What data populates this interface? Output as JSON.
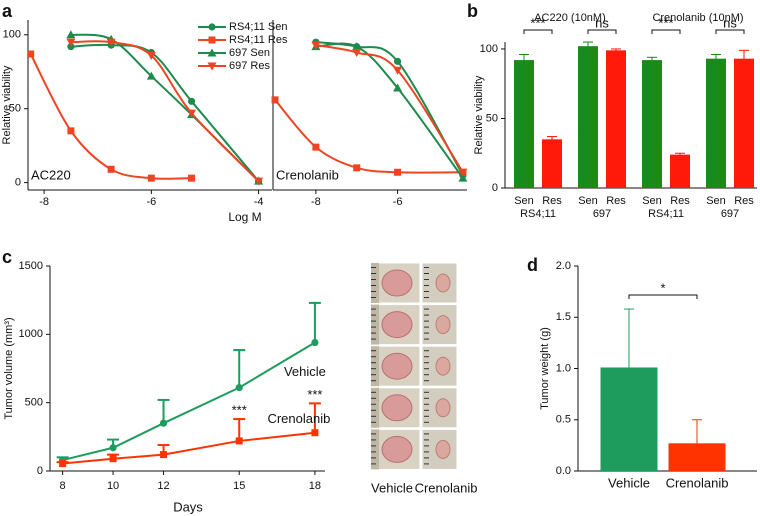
{
  "chart_data": [
    {
      "type": "scatter",
      "panel_label": "a",
      "y_label": "Relative viability",
      "x_label": "Log M",
      "ylim": [
        -5,
        110
      ],
      "yticks": [
        0,
        50,
        100
      ],
      "series": [
        {
          "name": "RS4;11 Sen",
          "color": "#1e8a4c",
          "marker": "circle"
        },
        {
          "name": "RS4;11 Res",
          "color": "#ee4422",
          "marker": "square"
        },
        {
          "name": "697 Sen",
          "color": "#1e8a4c",
          "marker": "triangle"
        },
        {
          "name": "697 Res",
          "color": "#ee4422",
          "marker": "triangle-down"
        }
      ],
      "panels": [
        {
          "annotation": "AC220",
          "xlim": [
            -8.3,
            -3.75
          ],
          "xticks": [
            -8,
            -6,
            -4
          ],
          "series": [
            {
              "x": [
                -7.5,
                -6.75,
                -6,
                -5.25,
                -4
              ],
              "values": [
                92,
                93,
                88,
                55,
                1
              ]
            },
            {
              "x": [
                -8.25,
                -7.5,
                -6.75,
                -6,
                -5.25
              ],
              "values": [
                87,
                35,
                9,
                3,
                3
              ]
            },
            {
              "x": [
                -7.5,
                -6.75,
                -6,
                -5.25,
                -4
              ],
              "values": [
                100,
                97,
                72,
                46,
                1
              ]
            },
            {
              "x": [
                -7.5,
                -6.75,
                -6,
                -5.25,
                -4
              ],
              "values": [
                95,
                95,
                86,
                47,
                1
              ]
            }
          ]
        },
        {
          "annotation": "Crenolanib",
          "xlim": [
            -9.05,
            -4.3
          ],
          "xticks": [
            -8,
            -6
          ],
          "series": [
            {
              "x": [
                -8,
                -7,
                -6,
                -4.4
              ],
              "values": [
                95,
                92,
                82,
                5
              ]
            },
            {
              "x": [
                -9,
                -8,
                -7,
                -6,
                -4.4
              ],
              "values": [
                56,
                24,
                10,
                7,
                7
              ]
            },
            {
              "x": [
                -8,
                -7,
                -6,
                -4.4
              ],
              "values": [
                92,
                92,
                64,
                3
              ]
            },
            {
              "x": [
                -8,
                -7,
                -6,
                -4.4
              ],
              "values": [
                93,
                88,
                76,
                7
              ]
            }
          ]
        }
      ]
    },
    {
      "type": "bar",
      "panel_label": "b",
      "y_label": "Relative viability",
      "headers": [
        "AC220 (10nM)",
        "Crenolanib (10nM)"
      ],
      "categories": [
        "Sen",
        "Res",
        "Sen",
        "Res",
        "Sen",
        "Res",
        "Sen",
        "Res"
      ],
      "groups": [
        "RS4;11",
        "697",
        "RS4;11",
        "697"
      ],
      "values": [
        92,
        35,
        102,
        99,
        92,
        24,
        93,
        93
      ],
      "errors": [
        4,
        2,
        3,
        1,
        2,
        1,
        3,
        6
      ],
      "colors": [
        "#1a8a1a",
        "#ff1a0a",
        "#1a8a1a",
        "#ff1a0a",
        "#1a8a1a",
        "#ff1a0a",
        "#1a8a1a",
        "#ff1a0a"
      ],
      "significance": [
        "***",
        "ns",
        "***",
        "ns"
      ],
      "ylim": [
        0,
        105
      ],
      "yticks": [
        0,
        50,
        100
      ]
    },
    {
      "type": "line",
      "panel_label": "c",
      "y_label": "Tumor volume (mm³)",
      "x_label": "Days",
      "x": [
        8,
        10,
        12,
        15,
        18
      ],
      "series": [
        {
          "name": "Vehicle",
          "color": "#1e9c5e",
          "marker": "circle",
          "values": [
            80,
            170,
            350,
            610,
            940
          ],
          "errors": [
            20,
            60,
            170,
            275,
            290
          ]
        },
        {
          "name": "Crenolanib",
          "color": "#ff3300",
          "marker": "square",
          "values": [
            55,
            90,
            120,
            220,
            280
          ],
          "errors": [
            10,
            30,
            70,
            160,
            215
          ]
        }
      ],
      "annotations": [
        "***",
        "***"
      ],
      "xlim": [
        7.5,
        18.4
      ],
      "xticks": [
        8,
        10,
        12,
        15,
        18
      ],
      "ylim": [
        0,
        1500
      ],
      "yticks": [
        0,
        500,
        1000,
        1500
      ]
    },
    {
      "type": "bar",
      "panel_label": "d",
      "y_label": "Tumor weight (g)",
      "categories": [
        "Vehicle",
        "Crenolanib"
      ],
      "values": [
        1.01,
        0.27
      ],
      "errors": [
        0.57,
        0.23
      ],
      "colors": [
        "#1e9c5e",
        "#ff3300"
      ],
      "significance": [
        "*"
      ],
      "ylim": [
        0,
        2.0
      ],
      "yticks": [
        {
          "value": 0,
          "label": "0.0"
        },
        {
          "value": 0.5,
          "label": "0.5"
        },
        {
          "value": 1,
          "label": "1.0"
        },
        {
          "value": 1.5,
          "label": "1.5"
        },
        {
          "value": 2,
          "label": "2.0"
        }
      ]
    }
  ],
  "photo_panel": {
    "labels": [
      "Vehicle",
      "Crenolanib"
    ]
  }
}
